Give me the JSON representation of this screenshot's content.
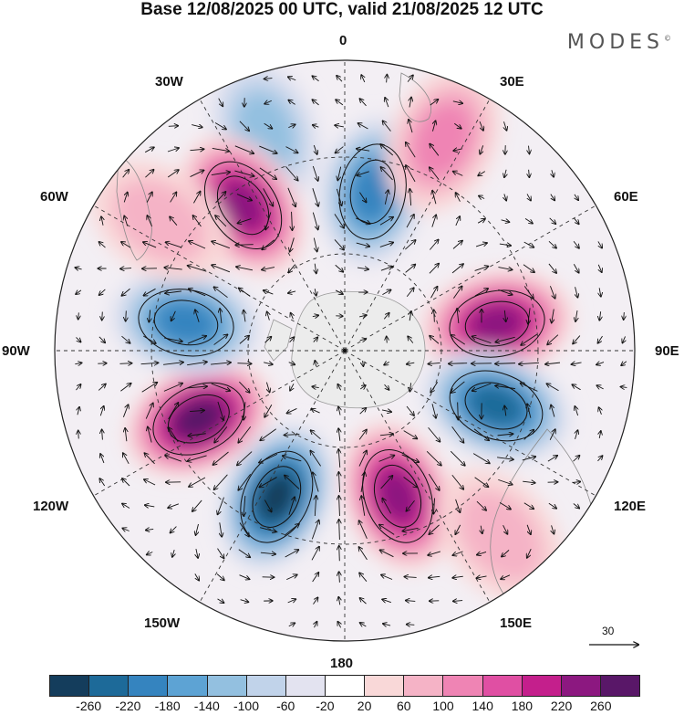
{
  "title": "Base 12/08/2025 00 UTC, valid 21/08/2025 12 UTC",
  "brand": "MODES",
  "brand_mark": "©",
  "longitude_labels": {
    "lon_0": "0",
    "lon_30e": "30E",
    "lon_60e": "60E",
    "lon_90e": "90E",
    "lon_120e": "120E",
    "lon_150e": "150E",
    "lon_180": "180",
    "lon_150w": "150W",
    "lon_120w": "120W",
    "lon_90w": "90W",
    "lon_60w": "60W",
    "lon_30w": "30W"
  },
  "vector_scale_label": "30",
  "colorbar": {
    "colors": [
      "#143d5c",
      "#1d6a99",
      "#3584bf",
      "#5da3d4",
      "#93c0e0",
      "#c1d3ea",
      "#e3e3f0",
      "#ffffff",
      "#f9d8d8",
      "#f5b3c6",
      "#ef84b4",
      "#e04fa3",
      "#c41f8c",
      "#8c1880",
      "#591768"
    ],
    "tick_labels": [
      "-260",
      "-220",
      "-180",
      "-140",
      "-100",
      "-60",
      "-20",
      "20",
      "60",
      "100",
      "140",
      "180",
      "220",
      "260"
    ]
  },
  "anomalies": [
    {
      "name": "anomaly-negative-north",
      "lon": 10,
      "lat": -40,
      "value": -180
    },
    {
      "name": "anomaly-negative-upper-left",
      "lon": -20,
      "lat": -18,
      "value": -100
    },
    {
      "name": "anomaly-positive-upper-left",
      "lon": -35,
      "lat": -35,
      "value": 220
    },
    {
      "name": "anomaly-positive-upper-right",
      "lon": 25,
      "lat": -18,
      "value": 100
    },
    {
      "name": "anomaly-positive-east",
      "lon": 80,
      "lat": -42,
      "value": 220
    },
    {
      "name": "anomaly-negative-east",
      "lon": 110,
      "lat": -40,
      "value": -220
    },
    {
      "name": "anomaly-positive-south",
      "lon": 160,
      "lat": -42,
      "value": 220
    },
    {
      "name": "anomaly-negative-south",
      "lon": -155,
      "lat": -40,
      "value": -260
    },
    {
      "name": "anomaly-positive-west",
      "lon": -115,
      "lat": -40,
      "value": 260
    },
    {
      "name": "anomaly-negative-west",
      "lon": -80,
      "lat": -40,
      "value": -180
    },
    {
      "name": "anomaly-positive-far-west",
      "lon": -55,
      "lat": -20,
      "value": 60
    },
    {
      "name": "anomaly-positive-southeast-edge",
      "lon": 140,
      "lat": -15,
      "value": 60
    }
  ]
}
